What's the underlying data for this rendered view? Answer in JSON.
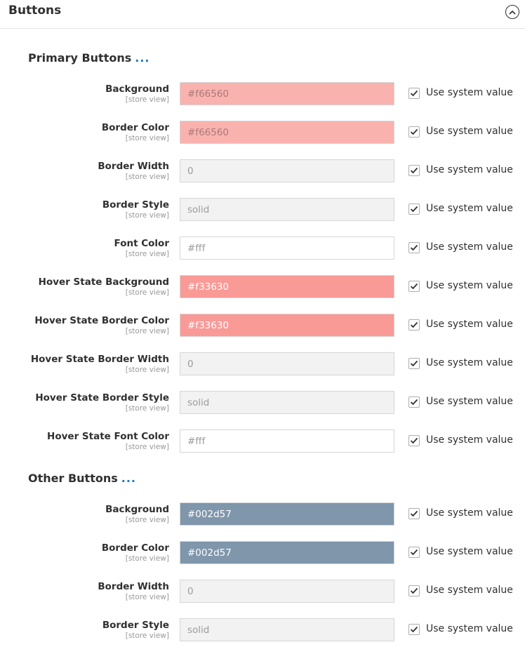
{
  "panel": {
    "title": "Buttons"
  },
  "use_system_label": "Use system value",
  "sections": [
    {
      "title": "Primary Buttons",
      "dots": "...",
      "rows": [
        {
          "label": "Background",
          "scope": "[store view]",
          "value": "#f66560",
          "bg": "#fab2af",
          "fg": "#a87a78"
        },
        {
          "label": "Border Color",
          "scope": "[store view]",
          "value": "#f66560",
          "bg": "#fab2af",
          "fg": "#a87a78"
        },
        {
          "label": "Border Width",
          "scope": "[store view]",
          "value": "0",
          "bg": "#f2f2f2",
          "fg": "#9c9c9c"
        },
        {
          "label": "Border Style",
          "scope": "[store view]",
          "value": "solid",
          "bg": "#f2f2f2",
          "fg": "#9c9c9c"
        },
        {
          "label": "Font Color",
          "scope": "[store view]",
          "value": "#fff",
          "bg": "#ffffff",
          "fg": "#9c9c9c"
        },
        {
          "label": "Hover State Background",
          "scope": "[store view]",
          "value": "#f33630",
          "bg": "#f99a97",
          "fg": "#ffffff"
        },
        {
          "label": "Hover State Border Color",
          "scope": "[store view]",
          "value": "#f33630",
          "bg": "#f99a97",
          "fg": "#ffffff"
        },
        {
          "label": "Hover State Border Width",
          "scope": "[store view]",
          "value": "0",
          "bg": "#f2f2f2",
          "fg": "#9c9c9c"
        },
        {
          "label": "Hover State Border Style",
          "scope": "[store view]",
          "value": "solid",
          "bg": "#f2f2f2",
          "fg": "#9c9c9c"
        },
        {
          "label": "Hover State Font Color",
          "scope": "[store view]",
          "value": "#fff",
          "bg": "#ffffff",
          "fg": "#9c9c9c"
        }
      ]
    },
    {
      "title": "Other Buttons",
      "dots": "...",
      "rows": [
        {
          "label": "Background",
          "scope": "[store view]",
          "value": "#002d57",
          "bg": "#7f96ab",
          "fg": "#ffffff"
        },
        {
          "label": "Border Color",
          "scope": "[store view]",
          "value": "#002d57",
          "bg": "#7f96ab",
          "fg": "#ffffff"
        },
        {
          "label": "Border Width",
          "scope": "[store view]",
          "value": "0",
          "bg": "#f2f2f2",
          "fg": "#9c9c9c"
        },
        {
          "label": "Border Style",
          "scope": "[store view]",
          "value": "solid",
          "bg": "#f2f2f2",
          "fg": "#9c9c9c"
        }
      ]
    }
  ]
}
